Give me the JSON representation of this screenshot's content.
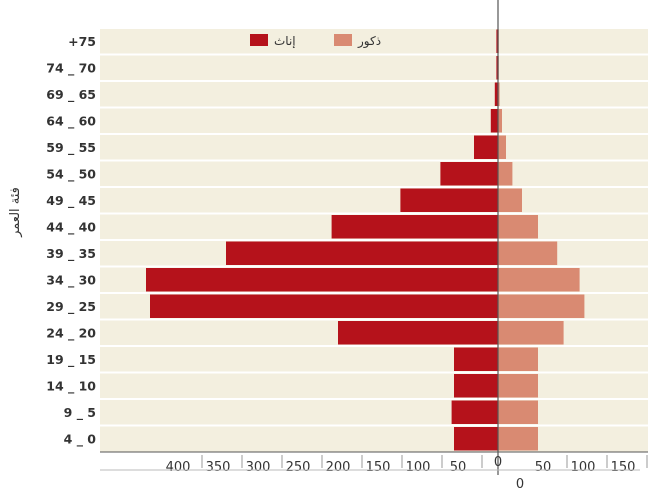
{
  "chart_data": {
    "type": "bar",
    "orientation": "horizontal",
    "layout": "population-pyramid",
    "ylabel": "فئة العمر",
    "categories": [
      "4 _ 0",
      "9 _ 5",
      "14 _ 10",
      "19 _ 15",
      "24 _ 20",
      "29 _ 25",
      "34 _ 30",
      "39 _ 35",
      "44 _ 40",
      "49 _ 45",
      "54 _ 50",
      "59 _ 55",
      "64 _ 60",
      "69 _ 65",
      "74 _ 70",
      "+75"
    ],
    "series": [
      {
        "name": "إناث",
        "side": "left",
        "color": "#b5121b",
        "values": [
          55,
          58,
          55,
          55,
          200,
          435,
          440,
          340,
          208,
          122,
          72,
          30,
          9,
          4,
          2,
          2
        ]
      },
      {
        "name": "ذكور",
        "side": "right",
        "color": "#d98a72",
        "values": [
          50,
          50,
          50,
          50,
          82,
          108,
          102,
          74,
          50,
          30,
          18,
          10,
          5,
          2,
          1,
          1
        ]
      }
    ],
    "x_ticks_left": [
      "400",
      "350",
      "300",
      "250",
      "200",
      "150",
      "100",
      "50"
    ],
    "x_ticks_right": [
      "0",
      "50",
      "100",
      "150"
    ],
    "x_zero_label_below": "0",
    "xlim_left": [
      0,
      440
    ],
    "xlim_right": [
      0,
      150
    ],
    "legend_position": "top",
    "grid": false
  },
  "colors": {
    "plot_background": "#f3efdf",
    "separator": "#ffffff",
    "axis": "#555555"
  }
}
